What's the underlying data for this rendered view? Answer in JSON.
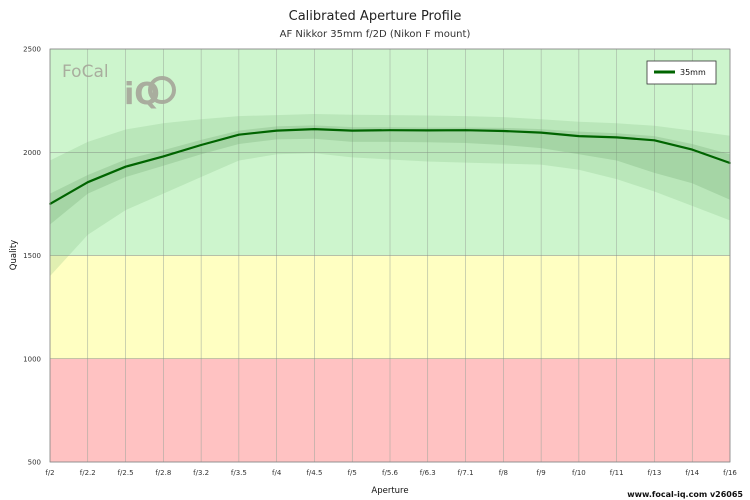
{
  "chart_data": {
    "type": "line",
    "title": "Calibrated Aperture Profile",
    "subtitle": "AF Nikkor 35mm f/2D (Nikon F mount)",
    "xlabel": "Aperture",
    "ylabel": "Quality",
    "categories": [
      "f/2",
      "f/2.2",
      "f/2.5",
      "f/2.8",
      "f/3.2",
      "f/3.5",
      "f/4",
      "f/4.5",
      "f/5",
      "f/5.6",
      "f/6.3",
      "f/7.1",
      "f/8",
      "f/9",
      "f/10",
      "f/11",
      "f/13",
      "f/14",
      "f/16"
    ],
    "ylim": [
      500,
      2500
    ],
    "yticks": [
      "500",
      "1000",
      "1500",
      "2000",
      "2500"
    ],
    "grid": true,
    "legend": "top-right",
    "zones": [
      {
        "from": 500,
        "to": 1000,
        "color": "#ffc2c2"
      },
      {
        "from": 1000,
        "to": 1500,
        "color": "#ffffc2"
      },
      {
        "from": 1500,
        "to": 2500,
        "color": "#cdf5cd"
      }
    ],
    "series": [
      {
        "name": "35mm",
        "color": "#006400",
        "values": [
          1750,
          1855,
          1930,
          1980,
          2035,
          2085,
          2105,
          2112,
          2105,
          2107,
          2106,
          2107,
          2103,
          2095,
          2078,
          2072,
          2058,
          2013,
          1948
        ],
        "band_inner_upper": [
          1800,
          1890,
          1965,
          2010,
          2060,
          2105,
          2125,
          2130,
          2122,
          2122,
          2120,
          2120,
          2118,
          2112,
          2100,
          2092,
          2078,
          2040,
          1990
        ],
        "band_inner_lower": [
          1650,
          1800,
          1880,
          1935,
          1990,
          2040,
          2062,
          2065,
          2050,
          2050,
          2048,
          2045,
          2035,
          2020,
          1990,
          1960,
          1900,
          1850,
          1770
        ],
        "band_outer_upper": [
          1960,
          2050,
          2110,
          2140,
          2160,
          2175,
          2180,
          2185,
          2182,
          2180,
          2178,
          2175,
          2170,
          2160,
          2148,
          2140,
          2128,
          2105,
          2080
        ],
        "band_outer_lower": [
          1400,
          1600,
          1720,
          1800,
          1880,
          1960,
          1990,
          1995,
          1975,
          1965,
          1955,
          1950,
          1945,
          1940,
          1915,
          1870,
          1810,
          1740,
          1670
        ]
      }
    ]
  },
  "credit": "www.focal-iq.com  v26065",
  "logo": {
    "top": "FoCal",
    "bottom": "iQ"
  }
}
